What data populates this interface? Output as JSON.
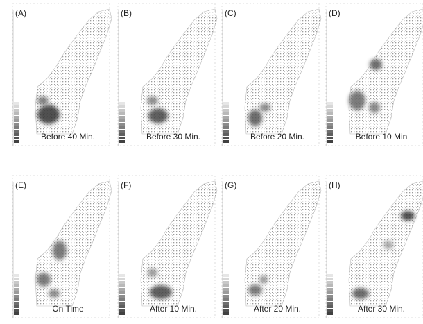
{
  "panels": [
    {
      "label": "(A)",
      "caption": "Before 40 Min."
    },
    {
      "label": "(B)",
      "caption": "Before 30 Min."
    },
    {
      "label": "(C)",
      "caption": "Before 20 Min."
    },
    {
      "label": "(D)",
      "caption": "Before 10 Min"
    },
    {
      "label": "(E)",
      "caption": "On Time"
    },
    {
      "label": "(F)",
      "caption": "After 10 Min."
    },
    {
      "label": "(G)",
      "caption": "After 20 Min."
    },
    {
      "label": "(H)",
      "caption": "After 30 Min."
    }
  ]
}
